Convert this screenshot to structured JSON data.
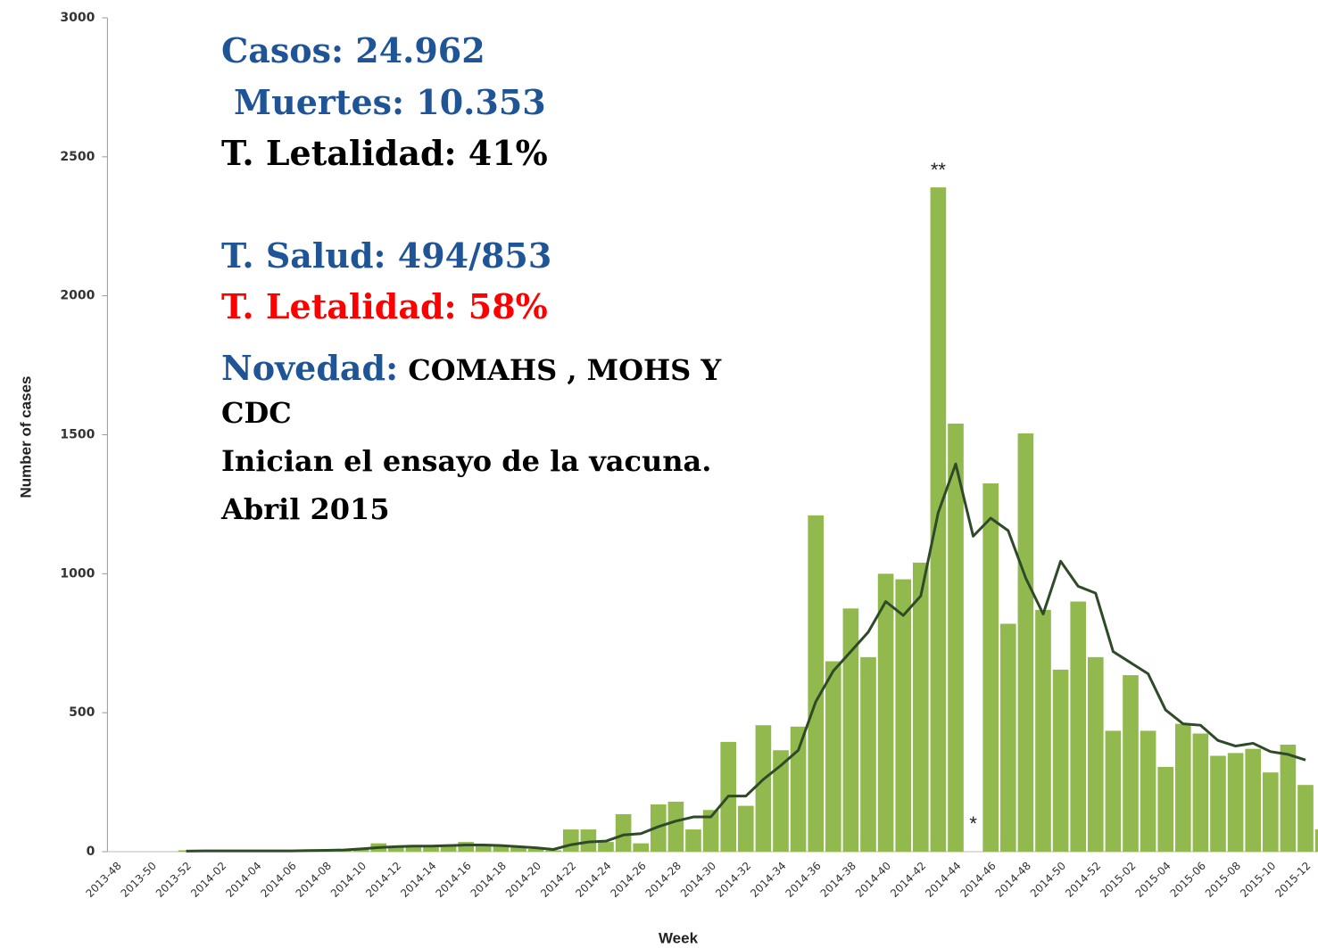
{
  "chart_data": {
    "type": "bar",
    "y_label": "Number of cases",
    "x_label": "Week",
    "categories": [
      "2013-48",
      null,
      "2013-50",
      null,
      "2013-52",
      null,
      "2014-02",
      null,
      "2014-04",
      null,
      "2014-06",
      null,
      "2014-08",
      null,
      "2014-10",
      null,
      "2014-12",
      null,
      "2014-14",
      null,
      "2014-16",
      null,
      "2014-18",
      null,
      "2014-20",
      null,
      "2014-22",
      null,
      "2014-24",
      null,
      "2014-26",
      null,
      "2014-28",
      null,
      "2014-30",
      null,
      "2014-32",
      null,
      "2014-34",
      null,
      "2014-36",
      null,
      "2014-38",
      null,
      "2014-40",
      null,
      "2014-42",
      null,
      "2014-44",
      null,
      "2014-46",
      null,
      "2014-48",
      null,
      "2014-50",
      null,
      "2014-52",
      null,
      "2015-02",
      null,
      "2015-04",
      null,
      "2015-06",
      null,
      "2015-08",
      null,
      "2015-10",
      null,
      "2015-12",
      null
    ],
    "series": [
      {
        "type": "bar",
        "color": "#92b94e",
        "values": [
          0,
          0,
          0,
          0,
          5,
          5,
          3,
          3,
          3,
          3,
          3,
          3,
          5,
          5,
          8,
          30,
          15,
          20,
          20,
          20,
          35,
          25,
          20,
          15,
          10,
          5,
          80,
          80,
          35,
          135,
          30,
          170,
          180,
          80,
          150,
          395,
          165,
          455,
          365,
          450,
          1210,
          685,
          875,
          700,
          1000,
          980,
          1040,
          2390,
          1540,
          null,
          1325,
          820,
          1505,
          870,
          655,
          900,
          700,
          435,
          635,
          435,
          305,
          460,
          425,
          345,
          355,
          370,
          285,
          385,
          240,
          80
        ]
      },
      {
        "type": "line",
        "color": "#2f4a28",
        "values": [
          null,
          null,
          null,
          null,
          2,
          3,
          3,
          3,
          3,
          3,
          3,
          4,
          5,
          6,
          10,
          15,
          18,
          20,
          20,
          22,
          24,
          24,
          22,
          18,
          14,
          8,
          25,
          35,
          38,
          60,
          65,
          90,
          110,
          125,
          125,
          200,
          200,
          260,
          310,
          365,
          540,
          650,
          720,
          790,
          900,
          850,
          920,
          1220,
          1395,
          1135,
          1200,
          1155,
          985,
          855,
          1045,
          955,
          930,
          720,
          680,
          640,
          510,
          460,
          455,
          400,
          380,
          390,
          360,
          350,
          330,
          null
        ]
      }
    ],
    "ylim": [
      0,
      3000
    ],
    "yticks": [
      0,
      500,
      1000,
      1500,
      2000,
      2500,
      3000
    ],
    "annotations": [
      {
        "text": "**",
        "index": 47
      },
      {
        "text": "*",
        "index": 49
      }
    ],
    "overlay": {
      "casos": "Casos: 24.962",
      "muertes": "Muertes: 10.353",
      "letalidad": "T. Letalidad: 41%",
      "salud": "T. Salud: 494/853",
      "letalidad_salud": "T. Letalidad: 58%",
      "novedad_label": "Novedad:",
      "novedad_text": " COMAHS , MOHS Y",
      "line1": "CDC",
      "line2": "Inician el ensayo de la vacuna.",
      "line3": "Abril 2015"
    }
  }
}
